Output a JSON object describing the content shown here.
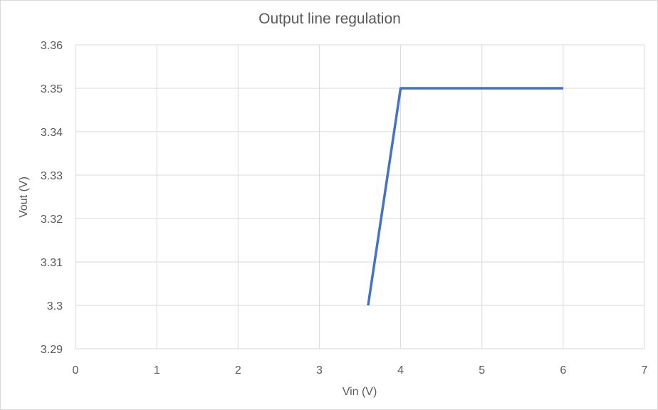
{
  "chart_data": {
    "type": "scatter",
    "title": "Output line regulation",
    "xlabel": "Vin (V)",
    "ylabel": "Vout  (V)",
    "xlim": [
      0,
      7
    ],
    "ylim": [
      3.29,
      3.36
    ],
    "x_ticks": [
      "0",
      "1",
      "2",
      "3",
      "4",
      "5",
      "6",
      "7"
    ],
    "y_ticks": [
      "3.29",
      "3.3",
      "3.31",
      "3.32",
      "3.33",
      "3.34",
      "3.35",
      "3.36"
    ],
    "grid": true,
    "legend": "none",
    "series": [
      {
        "color": "#4472c4",
        "points": [
          {
            "x": 3.6,
            "y": 3.3
          },
          {
            "x": 4.0,
            "y": 3.35
          },
          {
            "x": 6.0,
            "y": 3.35
          }
        ]
      }
    ]
  }
}
